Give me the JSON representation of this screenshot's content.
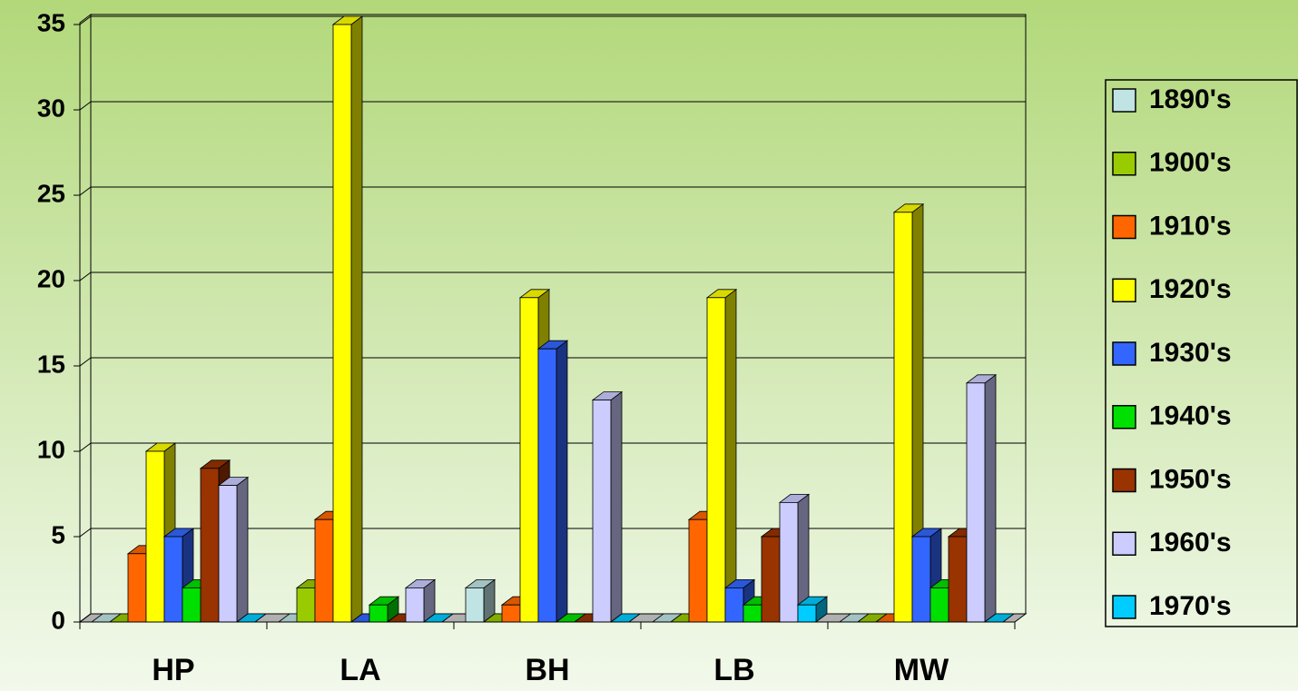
{
  "chart_data": {
    "type": "bar3d",
    "categories": [
      "HP",
      "LA",
      "BH",
      "LB",
      "MW"
    ],
    "series": [
      {
        "name": "1890's",
        "color": "#c0e4e4",
        "values": [
          0,
          0,
          2,
          0,
          0
        ]
      },
      {
        "name": "1900's",
        "color": "#99cc00",
        "values": [
          0,
          2,
          0,
          0,
          0
        ]
      },
      {
        "name": "1910's",
        "color": "#ff6600",
        "values": [
          4,
          6,
          1,
          6,
          0
        ]
      },
      {
        "name": "1920's",
        "color": "#ffff00",
        "values": [
          10,
          35,
          19,
          19,
          24
        ]
      },
      {
        "name": "1930's",
        "color": "#3366ff",
        "values": [
          5,
          0,
          16,
          2,
          5
        ]
      },
      {
        "name": "1940's",
        "color": "#00e000",
        "values": [
          2,
          1,
          0,
          1,
          2
        ]
      },
      {
        "name": "1950's",
        "color": "#993300",
        "values": [
          9,
          0,
          0,
          5,
          5
        ]
      },
      {
        "name": "1960's",
        "color": "#ccccff",
        "values": [
          8,
          2,
          13,
          7,
          14
        ]
      },
      {
        "name": "1970's",
        "color": "#00ccff",
        "values": [
          0,
          0,
          0,
          1,
          0
        ]
      }
    ],
    "ylim": [
      0,
      35
    ],
    "yticks": [
      0,
      5,
      10,
      15,
      20,
      25,
      30,
      35
    ],
    "grid": true,
    "legend": "right"
  }
}
